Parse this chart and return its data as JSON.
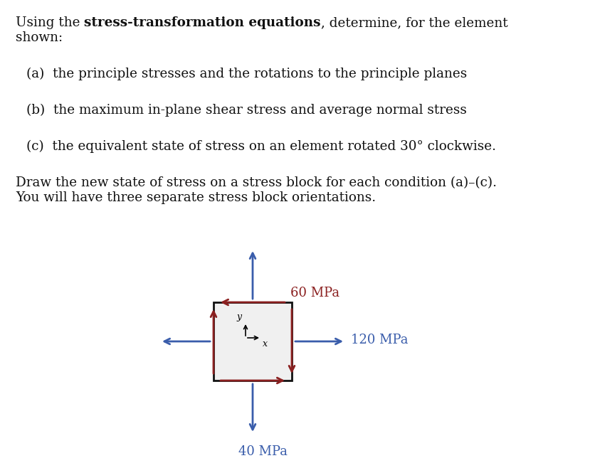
{
  "background_color": "#ffffff",
  "text_color": "#111111",
  "normal_color": "#3a5dab",
  "shear_color": "#8b2020",
  "box_fill": "#f0f0f0",
  "box_edge": "#111111",
  "font_size_main": 13.2,
  "font_size_stress": 13.0,
  "stress_120": "120 MPa",
  "stress_60": "60 MPa",
  "stress_40": "40 MPa",
  "item_a": "(a)  the principle stresses and the rotations to the principle planes",
  "item_b": "(b)  the maximum in-plane shear stress and average normal stress",
  "item_c": "(c)  the equivalent state of stress on an element rotated 30° clockwise.",
  "draw_line1": "Draw the new state of stress on a stress block for each condition (a)–(c).",
  "draw_line2": "You will have three separate stress block orientations."
}
